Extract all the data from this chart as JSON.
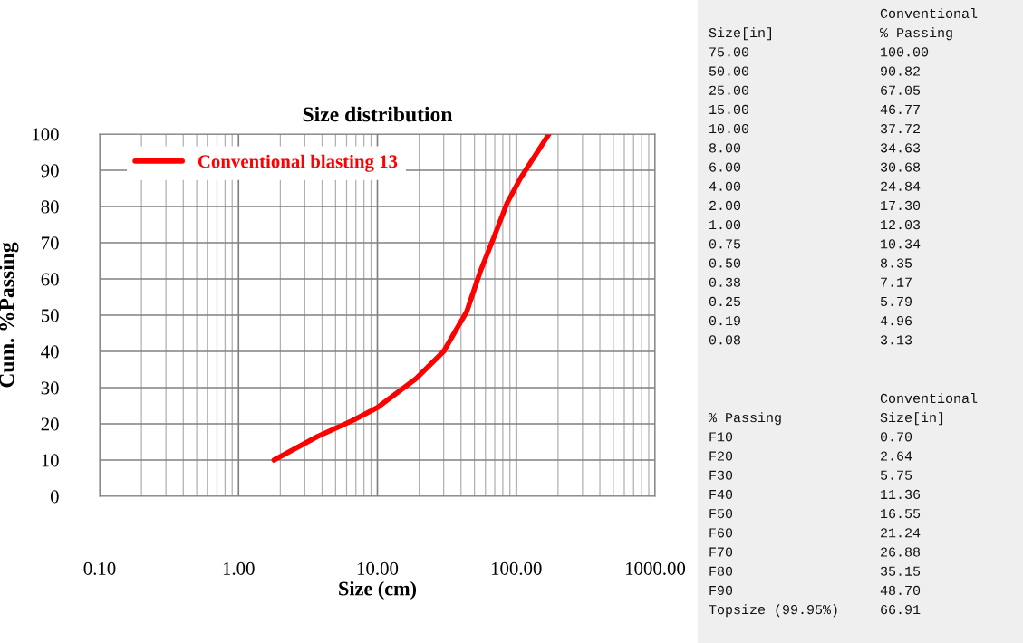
{
  "chart_data": [
    {
      "type": "line",
      "title": "Size distribution",
      "xlabel": "Size (cm)",
      "ylabel": "Cum. %Passing",
      "log": "x",
      "grid": true,
      "legend": "top left",
      "marker": "none",
      "line_style": "solid",
      "xlim": [
        0.1,
        1000
      ],
      "xticks": [
        {
          "value": 0.1,
          "label": "0.10"
        },
        {
          "value": 1,
          "label": "1.00"
        },
        {
          "value": 10,
          "label": "10.00"
        },
        {
          "value": 100,
          "label": "100.00"
        },
        {
          "value": 1000,
          "label": "1000.00"
        }
      ],
      "ylim": [
        0,
        100
      ],
      "yticks": [
        0,
        10,
        20,
        30,
        40,
        50,
        60,
        70,
        80,
        90,
        100
      ],
      "series": [
        {
          "name": "Conventional blasting 13",
          "color": "#ff0000",
          "x": [
            1.8,
            3.7,
            6.7,
            10,
            19,
            30,
            44,
            55,
            69,
            86,
            108,
            172
          ],
          "values": [
            10,
            16.5,
            21,
            24.5,
            32.5,
            40,
            51,
            62,
            71.5,
            81,
            88,
            100
          ]
        }
      ]
    },
    {
      "type": "other",
      "annotations": [
        "                     Conventional",
        "Size[in]             % Passing",
        "75.00                100.00",
        "50.00                90.82",
        "25.00                67.05",
        "15.00                46.77",
        "10.00                37.72",
        "8.00                 34.63",
        "6.00                 30.68",
        "4.00                 24.84",
        "2.00                 17.30",
        "1.00                 12.03",
        "0.75                 10.34",
        "0.50                 8.35",
        "0.38                 7.17",
        "0.25                 5.79",
        "0.19                 4.96",
        "0.08                 3.13"
      ]
    },
    {
      "type": "other",
      "annotations": [
        "                     Conventional",
        "% Passing            Size[in]",
        "F10                  0.70",
        "F20                  2.64",
        "F30                  5.75",
        "F40                  11.36",
        "F50                  16.55",
        "F60                  21.24",
        "F70                  26.88",
        "F80                  35.15",
        "F90                  48.70",
        "Topsize (99.95%)     66.91"
      ]
    }
  ]
}
